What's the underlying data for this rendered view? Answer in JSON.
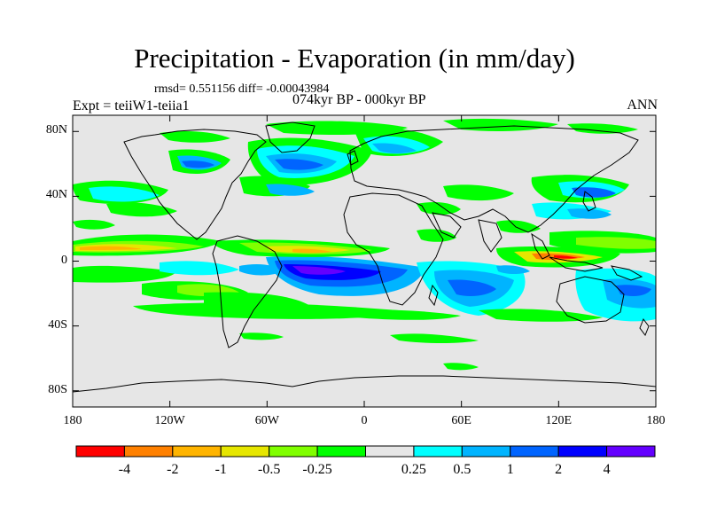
{
  "header": {
    "title": "Precipitation - Evaporation (in mm/day)",
    "stats": "rmsd= 0.551156 diff= -0.00043984",
    "period": "074kyr BP - 000kyr BP",
    "expt": "Expt = teiiW1-teiia1",
    "season": "ANN"
  },
  "map": {
    "lon_range": [
      -180,
      180
    ],
    "lat_range": [
      -90,
      90
    ],
    "projection": "cylindrical-equidistant",
    "background_color": "#e6e6e6",
    "coastline_color": "#000000",
    "lat_ticks": [
      {
        "lat": 80,
        "label": "80N"
      },
      {
        "lat": 40,
        "label": "40N"
      },
      {
        "lat": 0,
        "label": "0"
      },
      {
        "lat": -40,
        "label": "40S"
      },
      {
        "lat": -80,
        "label": "80S"
      }
    ],
    "lon_ticks": [
      {
        "lon": -180,
        "label": "180"
      },
      {
        "lon": -120,
        "label": "120W"
      },
      {
        "lon": -60,
        "label": "60W"
      },
      {
        "lon": 0,
        "label": "0"
      },
      {
        "lon": 60,
        "label": "60E"
      },
      {
        "lon": 120,
        "label": "120E"
      },
      {
        "lon": 180,
        "label": "180"
      }
    ]
  },
  "colorbar": {
    "colors": [
      "#ff0000",
      "#ff8000",
      "#ffb400",
      "#e6e600",
      "#80ff00",
      "#00ff00",
      "#e6e6e6",
      "#00ffff",
      "#00b4ff",
      "#0064ff",
      "#0000ff",
      "#6400ff"
    ],
    "labels": [
      "-4",
      "-2",
      "-1",
      "-0.5",
      "-0.25",
      "0.25",
      "0.5",
      "1",
      "2",
      "4"
    ]
  }
}
